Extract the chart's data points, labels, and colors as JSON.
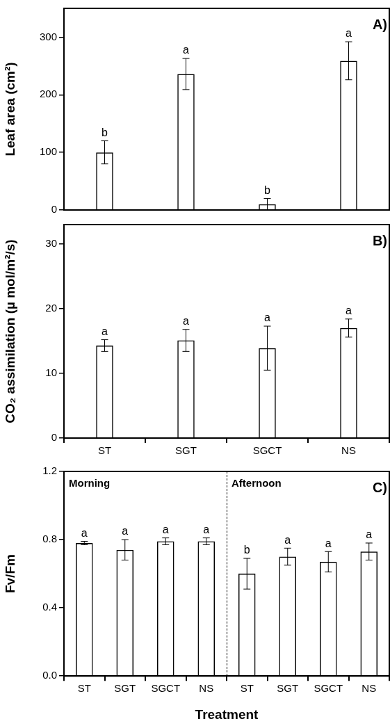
{
  "chart_data": [
    {
      "type": "bar",
      "title": "A)",
      "ylabel": "Leaf area (cm²)",
      "categories": [
        null,
        null,
        null,
        null
      ],
      "values": [
        100,
        236,
        10,
        259
      ],
      "errors": [
        20,
        27,
        10,
        33
      ],
      "value_labels": [
        "b",
        "a",
        "b",
        "a"
      ],
      "color": "#000000",
      "ylim": [
        0,
        350
      ],
      "yticks": [
        0,
        100,
        200,
        300
      ],
      "tick_labels": "y"
    },
    {
      "type": "bar",
      "title": "B)",
      "ylabel": "CO₂ assimilation (µ mol/m²/s)",
      "categories": [
        "ST",
        "SGT",
        "SGCT",
        "NS"
      ],
      "values": [
        14.3,
        15.1,
        13.9,
        17.0
      ],
      "errors": [
        0.9,
        1.7,
        3.4,
        1.4
      ],
      "value_labels": [
        "a",
        "a",
        "a",
        "a"
      ],
      "color": "#000000",
      "ylim": [
        0,
        33
      ],
      "yticks": [
        0,
        10,
        20,
        30
      ]
    },
    {
      "type": "bar",
      "title": "C)",
      "xlabel": "Treatment",
      "ylabel": "Fv/Fm",
      "annotations": [
        "Morning",
        "Afternoon"
      ],
      "categories": [
        "ST",
        "SGT",
        "SGCT",
        "NS",
        "ST",
        "SGT",
        "SGCT",
        "NS"
      ],
      "values": [
        0.78,
        0.74,
        0.79,
        0.79,
        0.6,
        0.7,
        0.67,
        0.73
      ],
      "errors": [
        0.01,
        0.06,
        0.02,
        0.02,
        0.09,
        0.05,
        0.06,
        0.05
      ],
      "value_labels": [
        "a",
        "a",
        "a",
        "a",
        "b",
        "a",
        "a",
        "a"
      ],
      "color": "#000000",
      "ylim": [
        0,
        1.2
      ],
      "yticks": [
        {
          "value": 0,
          "label": "0.0"
        },
        0.4,
        0.8,
        1.2
      ]
    }
  ]
}
